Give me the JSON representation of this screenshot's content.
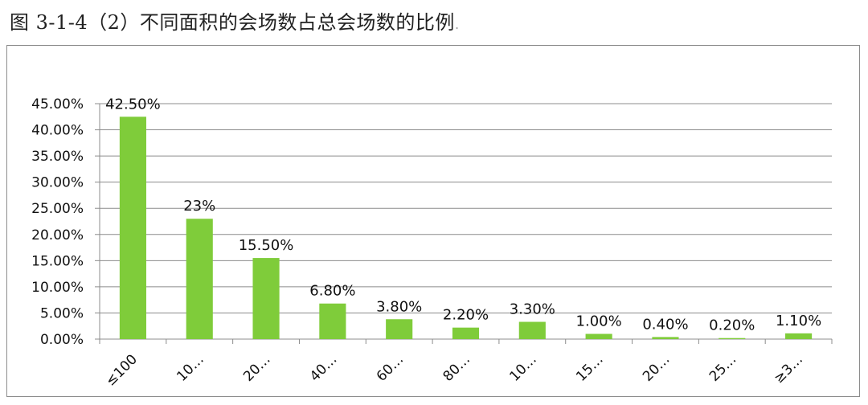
{
  "caption": {
    "text": "图 3-1-4（2）不同面积的会场数占总会场数的比例",
    "tail": "."
  },
  "chart_data": {
    "type": "bar",
    "title": "",
    "xlabel": "",
    "ylabel": "",
    "ylim": [
      0,
      45
    ],
    "yticks": [
      "0.00%",
      "5.00%",
      "10.00%",
      "15.00%",
      "20.00%",
      "25.00%",
      "30.00%",
      "35.00%",
      "40.00%",
      "45.00%"
    ],
    "grid": true,
    "categories": [
      "≤100",
      "10…",
      "20…",
      "40…",
      "60…",
      "80…",
      "10…",
      "15…",
      "20…",
      "25…",
      "≥3…"
    ],
    "values": [
      42.5,
      23,
      15.5,
      6.8,
      3.8,
      2.2,
      3.3,
      1.0,
      0.4,
      0.2,
      1.1
    ],
    "data_labels": [
      "42.50%",
      "23%",
      "15.50%",
      "6.80%",
      "3.80%",
      "2.20%",
      "3.30%",
      "1.00%",
      "0.40%",
      "0.20%",
      "1.10%"
    ],
    "bar_color": "#7fcc3a",
    "grid_color": "#8c8c8c"
  }
}
